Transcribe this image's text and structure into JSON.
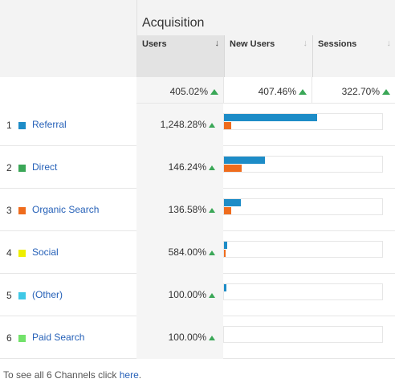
{
  "header": {
    "acquisition_title": "Acquisition",
    "columns": [
      {
        "label": "Users",
        "sort_icon": "arrow-down-icon",
        "active": true
      },
      {
        "label": "New Users",
        "sort_icon": "arrow-down-icon",
        "active": false
      },
      {
        "label": "Sessions",
        "sort_icon": "arrow-down-icon",
        "active": false
      }
    ]
  },
  "totals": {
    "users": "405.02%",
    "new_users": "407.46%",
    "sessions": "322.70%"
  },
  "rows": [
    {
      "rank": "1",
      "name": "Referral",
      "color": "#1d8cc7",
      "users": "1,248.28%",
      "users_bar": 0.59,
      "new_users_bar": 0.045
    },
    {
      "rank": "2",
      "name": "Direct",
      "color": "#3aa757",
      "users": "146.24%",
      "users_bar": 0.26,
      "new_users_bar": 0.11
    },
    {
      "rank": "3",
      "name": "Organic Search",
      "color": "#ef6c1d",
      "users": "136.58%",
      "users_bar": 0.105,
      "new_users_bar": 0.045
    },
    {
      "rank": "4",
      "name": "Social",
      "color": "#eeee00",
      "users": "584.00%",
      "users_bar": 0.02,
      "new_users_bar": 0.01
    },
    {
      "rank": "5",
      "name": "(Other)",
      "color": "#3fc8e6",
      "users": "100.00%",
      "users_bar": 0.015,
      "new_users_bar": 0.0
    },
    {
      "rank": "6",
      "name": "Paid Search",
      "color": "#72e26a",
      "users": "100.00%",
      "users_bar": 0.0,
      "new_users_bar": 0.0
    }
  ],
  "up_icon": "up-arrow-icon",
  "up_color": "#3aa757",
  "footer": {
    "text": "To see all 6 Channels click",
    "link": "here",
    "end": "."
  }
}
